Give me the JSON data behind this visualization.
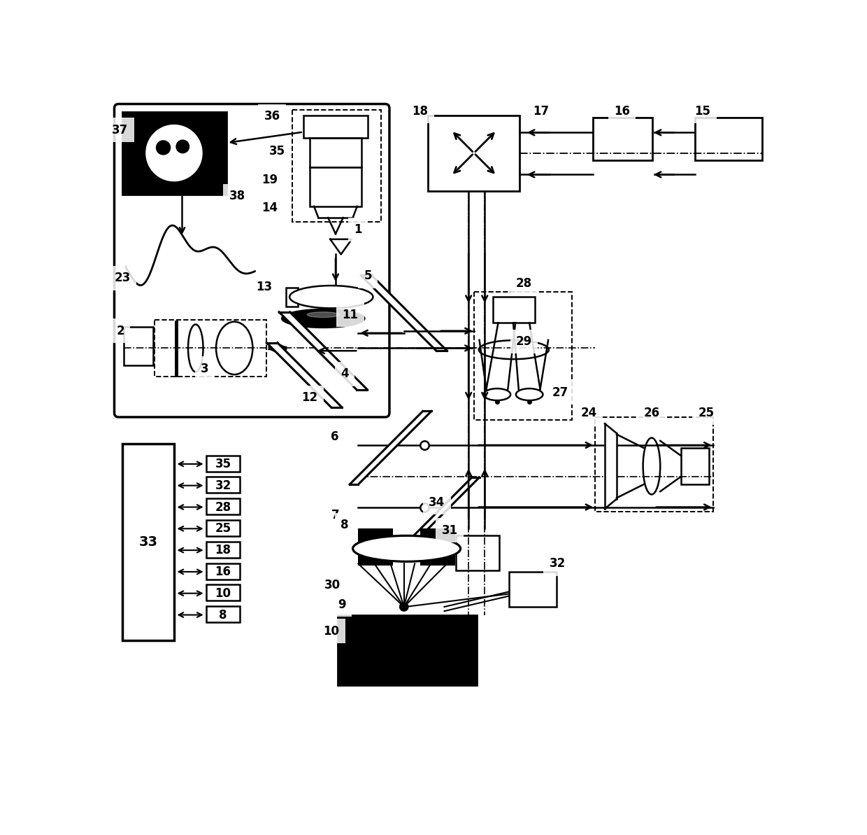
{
  "fig_width": 12.4,
  "fig_height": 11.93,
  "bg": "#ffffff"
}
